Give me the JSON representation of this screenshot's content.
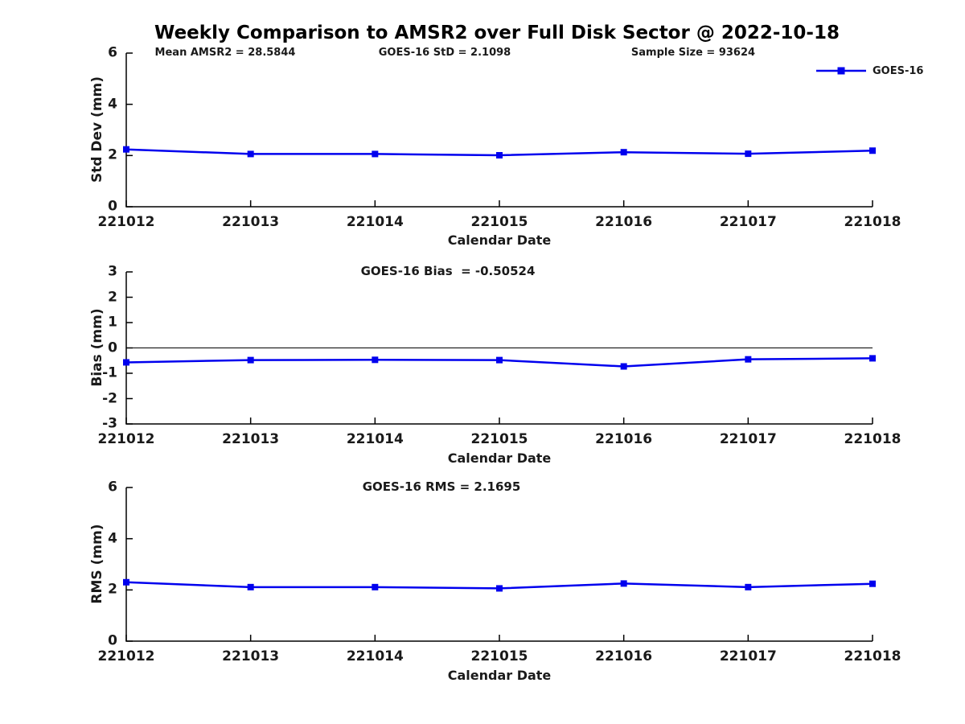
{
  "title": "Weekly Comparison to AMSR2 over Full Disk Sector @ 2022-10-18",
  "legend": {
    "label": "GOES-16",
    "position": "top-right",
    "marker": "filled-square"
  },
  "colors": {
    "series": "#0000EE",
    "axis": "#000000",
    "text": "#1a1a1a"
  },
  "x_axis": {
    "label": "Calendar Date",
    "categories": [
      "221012",
      "221013",
      "221014",
      "221015",
      "221016",
      "221017",
      "221018"
    ]
  },
  "chart_data": [
    {
      "id": "stddev",
      "type": "line",
      "ylabel": "Std Dev (mm)",
      "ylim": [
        0,
        6
      ],
      "yticks": [
        0,
        2,
        4,
        6
      ],
      "grid": false,
      "zero_line": false,
      "annotations": [
        "Mean AMSR2 = 28.5844",
        "GOES-16 StD = 2.1098",
        "Sample Size = 93624"
      ],
      "series": [
        {
          "name": "GOES-16",
          "values": [
            2.24,
            2.06,
            2.06,
            2.01,
            2.13,
            2.07,
            2.19
          ]
        }
      ]
    },
    {
      "id": "bias",
      "type": "line",
      "ylabel": "Bias (mm)",
      "ylim": [
        -3,
        3
      ],
      "yticks": [
        -3,
        -2,
        -1,
        0,
        1,
        2,
        3
      ],
      "grid": false,
      "zero_line": true,
      "annotation": "GOES-16 Bias  = -0.50524",
      "series": [
        {
          "name": "GOES-16",
          "values": [
            -0.57,
            -0.48,
            -0.47,
            -0.48,
            -0.73,
            -0.45,
            -0.41
          ]
        }
      ]
    },
    {
      "id": "rms",
      "type": "line",
      "ylabel": "RMS (mm)",
      "ylim": [
        0,
        6
      ],
      "yticks": [
        0,
        2,
        4,
        6
      ],
      "grid": false,
      "zero_line": false,
      "annotation": "GOES-16 RMS = 2.1695",
      "series": [
        {
          "name": "GOES-16",
          "values": [
            2.3,
            2.11,
            2.11,
            2.06,
            2.25,
            2.11,
            2.24
          ]
        }
      ]
    }
  ]
}
